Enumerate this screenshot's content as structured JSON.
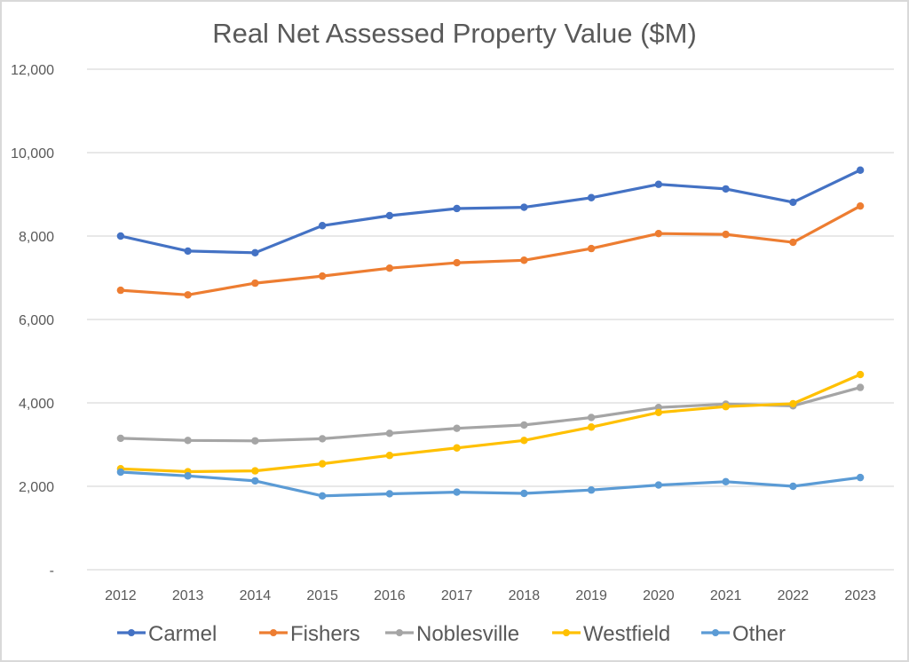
{
  "chart_data": {
    "type": "line",
    "title": "Real Net Assessed Property Value ($M)",
    "xlabel": "",
    "ylabel": "",
    "categories": [
      "2012",
      "2013",
      "2014",
      "2015",
      "2016",
      "2017",
      "2018",
      "2019",
      "2020",
      "2021",
      "2022",
      "2023"
    ],
    "ylim": [
      0,
      12000
    ],
    "yticks": [
      0,
      2000,
      4000,
      6000,
      8000,
      10000,
      12000
    ],
    "ytick_labels": [
      "-",
      "2,000",
      "4,000",
      "6,000",
      "8,000",
      "10,000",
      "12,000"
    ],
    "grid": true,
    "legend_position": "bottom",
    "series": [
      {
        "name": "Carmel",
        "color": "#4472C4",
        "values": [
          8000,
          7640,
          7600,
          8250,
          8490,
          8660,
          8690,
          8920,
          9240,
          9130,
          8810,
          9580
        ]
      },
      {
        "name": "Fishers",
        "color": "#ED7D31",
        "values": [
          6700,
          6590,
          6870,
          7040,
          7230,
          7360,
          7420,
          7700,
          8060,
          8040,
          7850,
          8720
        ]
      },
      {
        "name": "Noblesville",
        "color": "#A5A5A5",
        "values": [
          3150,
          3100,
          3090,
          3140,
          3270,
          3390,
          3470,
          3650,
          3890,
          3970,
          3930,
          4370
        ]
      },
      {
        "name": "Westfield",
        "color": "#FFC000",
        "values": [
          2420,
          2350,
          2370,
          2540,
          2740,
          2920,
          3100,
          3420,
          3770,
          3910,
          3980,
          4680
        ]
      },
      {
        "name": "Other",
        "color": "#5B9BD5",
        "values": [
          2340,
          2250,
          2130,
          1770,
          1820,
          1860,
          1830,
          1910,
          2030,
          2110,
          2000,
          2210
        ]
      }
    ]
  }
}
